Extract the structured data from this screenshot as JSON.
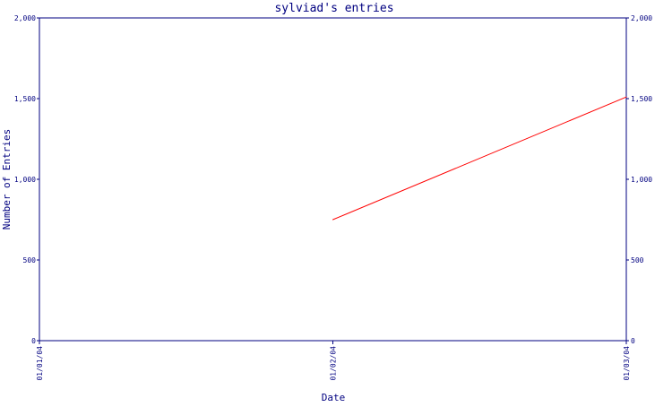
{
  "chart_data": {
    "type": "line",
    "title": "sylviad's entries",
    "xlabel": "Date",
    "ylabel": "Number of Entries",
    "x_ticks": [
      "01/01/04",
      "01/02/04",
      "01/03/04"
    ],
    "y_ticks": [
      "0",
      "500",
      "1,000",
      "1,500",
      "2,000"
    ],
    "ylim": [
      0,
      2000
    ],
    "grid": false,
    "series": [
      {
        "color": "#ff0000",
        "points": [
          {
            "x": "01/02/04",
            "y": 750
          },
          {
            "x": "01/03/04",
            "y": 1510
          }
        ]
      }
    ]
  },
  "colors": {
    "axis": "#000080",
    "text": "#000080",
    "line": "#ff0000",
    "background": "#ffffff"
  }
}
